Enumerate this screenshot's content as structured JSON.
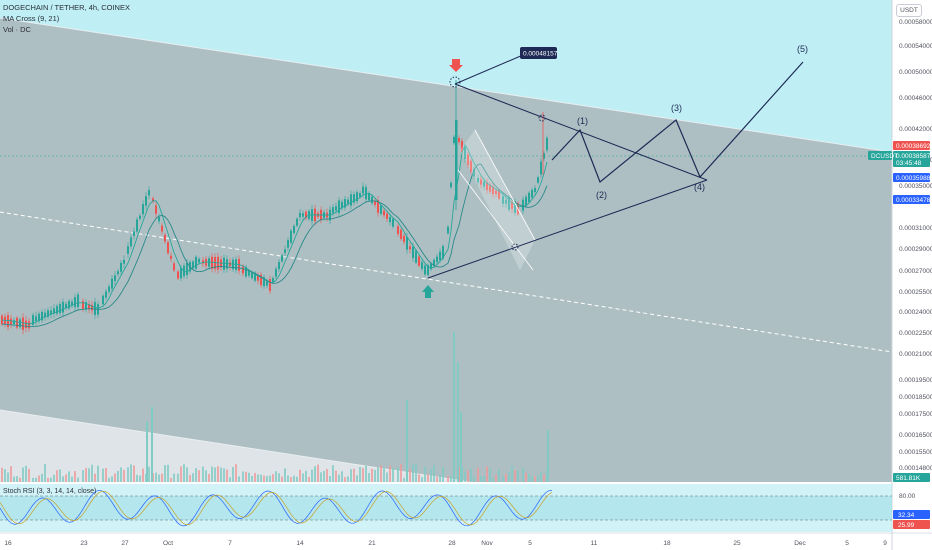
{
  "legend": {
    "symbol": "DOGECHAIN / TETHER, 4h, COINEX",
    "ma_cross": "MA Cross (9, 21)",
    "volume": "Vol · DC"
  },
  "currency": "USDT",
  "price_axis": {
    "ticks": [
      "0.00058000",
      "0.00054000",
      "0.00050000",
      "0.00046000",
      "0.00042000",
      "0.00039000",
      "0.00035000",
      "0.00031000",
      "0.00029000",
      "0.00027000",
      "0.00025500",
      "0.00024000",
      "0.00022500",
      "0.00021000",
      "0.00019500",
      "0.00018500",
      "0.00017500",
      "0.00016500",
      "0.00015500",
      "0.00014800"
    ],
    "badges": [
      {
        "text": "0.00038692",
        "color": "#ef5350"
      },
      {
        "text": "0.00038587",
        "color": "#26a69a"
      },
      {
        "text": "03:45:48",
        "color": "#26a69a"
      },
      {
        "text": "0.00035988",
        "color": "#2962ff"
      },
      {
        "text": "0.00033478",
        "color": "#2962ff"
      },
      {
        "text": "581.81K",
        "color": "#26a69a"
      }
    ],
    "symbol_badge": "DCUSDT"
  },
  "high_callout": "0.00048157",
  "waves": [
    "(1)",
    "(2)",
    "(3)",
    "(4)",
    "(5)"
  ],
  "stoch": {
    "label": "Stoch RSI (3, 3, 14, 14, close)",
    "upper": "80.00",
    "value1": "32.34",
    "value2": "25.99"
  },
  "date_axis": [
    "16",
    "23",
    "27",
    "Oct",
    "7",
    "14",
    "21",
    "28",
    "Nov",
    "5",
    "11",
    "18",
    "25",
    "Dec",
    "5",
    "9"
  ],
  "colors": {
    "up": "#26a69a",
    "down": "#ef5350",
    "channel_fill": "#b2ebf2",
    "draw_line": "#1e2a55"
  }
}
